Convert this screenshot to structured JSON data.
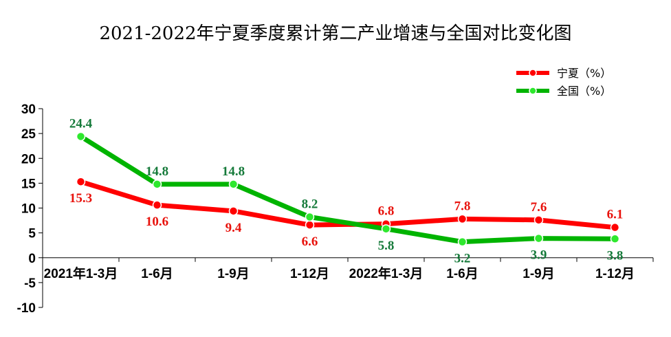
{
  "chart_data": {
    "type": "line",
    "title": "2021-2022年宁夏季度累计第二产业增速与全国对比变化图",
    "categories": [
      "2021年1-3月",
      "1-6月",
      "1-9月",
      "1-12月",
      "2022年1-3月",
      "1-6月",
      "1-9月",
      "1-12月"
    ],
    "series": [
      {
        "name": "宁夏（%）",
        "values": [
          15.3,
          10.6,
          9.4,
          6.6,
          6.8,
          7.8,
          7.6,
          6.1
        ],
        "color": "#ff0000",
        "label_color": "#e8120c",
        "label_positions": [
          "below",
          "below",
          "below",
          "below",
          "above",
          "above",
          "above",
          "above"
        ]
      },
      {
        "name": "全国（%）",
        "values": [
          24.4,
          14.8,
          14.8,
          8.2,
          5.8,
          3.2,
          3.9,
          3.8
        ],
        "color": "#00b400",
        "label_color": "#157a3a",
        "label_positions": [
          "above",
          "above",
          "above",
          "above",
          "below",
          "below",
          "below",
          "below"
        ]
      }
    ],
    "yticks": [
      30,
      25,
      20,
      15,
      10,
      5,
      0,
      -5,
      -10
    ],
    "ylim": [
      -10,
      30
    ],
    "grid": false,
    "legend_position": "top-right"
  }
}
